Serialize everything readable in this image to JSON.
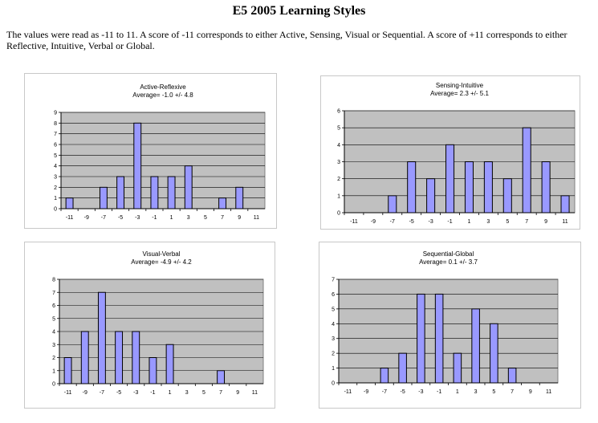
{
  "page": {
    "title": "E5 2005 Learning Styles",
    "intro": "The values were read as -11 to 11.  A score of -11 corresponds to either Active, Sensing, Visual or Sequential.  A score of +11 corresponds to either Reflective, Intuitive, Verbal or Global."
  },
  "colors": {
    "bar": "#9999ff",
    "plot_bg": "#c0c0c0",
    "grid": "#000000"
  },
  "chart_data": [
    {
      "type": "bar",
      "title": "Active-Reflexive",
      "subtitle": "Average= -1.0 +/- 4.8",
      "categories": [
        "-11",
        "-9",
        "-7",
        "-5",
        "-3",
        "-1",
        "1",
        "3",
        "5",
        "7",
        "9",
        "11"
      ],
      "values": [
        1,
        0,
        2,
        3,
        8,
        3,
        3,
        4,
        0,
        1,
        2,
        0
      ],
      "ylim": [
        0,
        9
      ],
      "grid": true
    },
    {
      "type": "bar",
      "title": "Sensing-Intuitive",
      "subtitle": "Average= 2.3 +/- 5.1",
      "categories": [
        "-11",
        "-9",
        "-7",
        "-5",
        "-3",
        "-1",
        "1",
        "3",
        "5",
        "7",
        "9",
        "11"
      ],
      "values": [
        0,
        0,
        1,
        3,
        2,
        4,
        3,
        3,
        2,
        5,
        3,
        1
      ],
      "ylim": [
        0,
        6
      ],
      "grid": true
    },
    {
      "type": "bar",
      "title": "Visual-Verbal",
      "subtitle": "Average= -4.9 +/- 4.2",
      "categories": [
        "-11",
        "-9",
        "-7",
        "-5",
        "-3",
        "-1",
        "1",
        "3",
        "5",
        "7",
        "9",
        "11"
      ],
      "values": [
        2,
        4,
        7,
        4,
        4,
        2,
        3,
        0,
        0,
        1,
        0,
        0
      ],
      "ylim": [
        0,
        8
      ],
      "grid": true
    },
    {
      "type": "bar",
      "title": "Sequential-Global",
      "subtitle": "Average= 0.1 +/- 3.7",
      "categories": [
        "-11",
        "-9",
        "-7",
        "-5",
        "-3",
        "-1",
        "1",
        "3",
        "5",
        "7",
        "9",
        "11"
      ],
      "values": [
        0,
        0,
        1,
        2,
        6,
        6,
        2,
        5,
        4,
        1,
        0,
        0
      ],
      "ylim": [
        0,
        7
      ],
      "grid": true
    }
  ]
}
